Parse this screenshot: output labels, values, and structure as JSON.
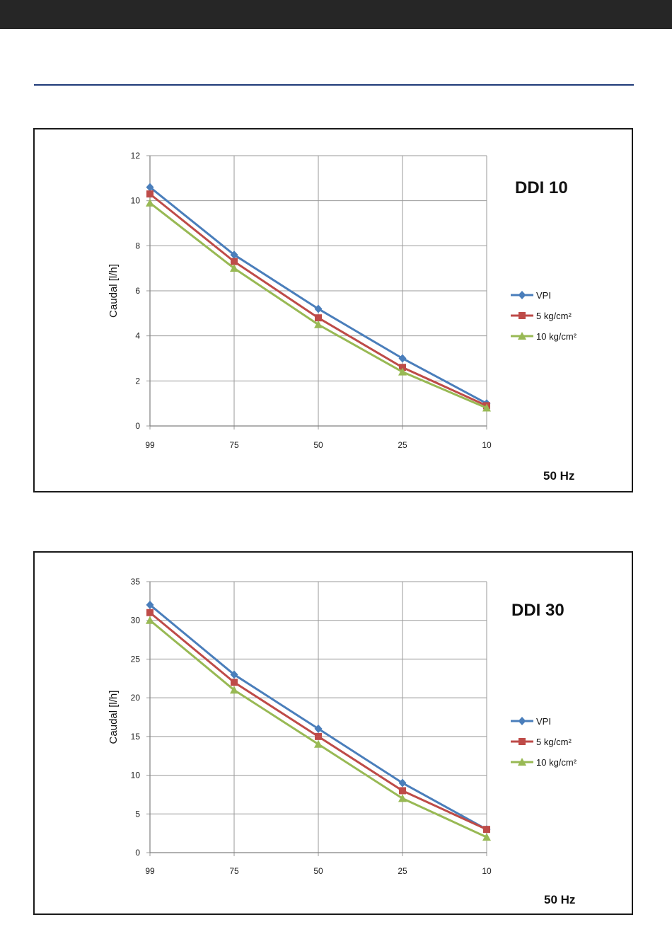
{
  "chart_data": [
    {
      "type": "line",
      "title": "DDI 10",
      "footer": "50 Hz",
      "xlabel": "",
      "ylabel": "Caudal [l/h]",
      "categories": [
        "99",
        "75",
        "50",
        "25",
        "10"
      ],
      "ylim": [
        0,
        12
      ],
      "yticks": [
        0,
        2,
        4,
        6,
        8,
        10,
        12
      ],
      "grid": true,
      "legend_position": "right",
      "series": [
        {
          "name": "VPI",
          "color": "#4a7ebb",
          "marker": "diamond",
          "values": [
            10.6,
            7.6,
            5.2,
            3.0,
            1.0
          ]
        },
        {
          "name": "5 kg/cm²",
          "color": "#be4b48",
          "marker": "square",
          "values": [
            10.3,
            7.3,
            4.8,
            2.6,
            0.9
          ]
        },
        {
          "name": "10 kg/cm²",
          "color": "#98b954",
          "marker": "triangle",
          "values": [
            9.9,
            7.0,
            4.5,
            2.4,
            0.8
          ]
        }
      ]
    },
    {
      "type": "line",
      "title": "DDI 30",
      "footer": "50 Hz",
      "xlabel": "",
      "ylabel": "Caudal [l/h]",
      "categories": [
        "99",
        "75",
        "50",
        "25",
        "10"
      ],
      "ylim": [
        0,
        35
      ],
      "yticks": [
        0,
        5,
        10,
        15,
        20,
        25,
        30,
        35
      ],
      "grid": true,
      "legend_position": "right",
      "series": [
        {
          "name": "VPI",
          "color": "#4a7ebb",
          "marker": "diamond",
          "values": [
            32,
            23,
            16,
            9,
            3
          ]
        },
        {
          "name": "5 kg/cm²",
          "color": "#be4b48",
          "marker": "square",
          "values": [
            31,
            22,
            15,
            8,
            3
          ]
        },
        {
          "name": "10 kg/cm²",
          "color": "#98b954",
          "marker": "triangle",
          "values": [
            30,
            21,
            14,
            7,
            2
          ]
        }
      ]
    }
  ]
}
